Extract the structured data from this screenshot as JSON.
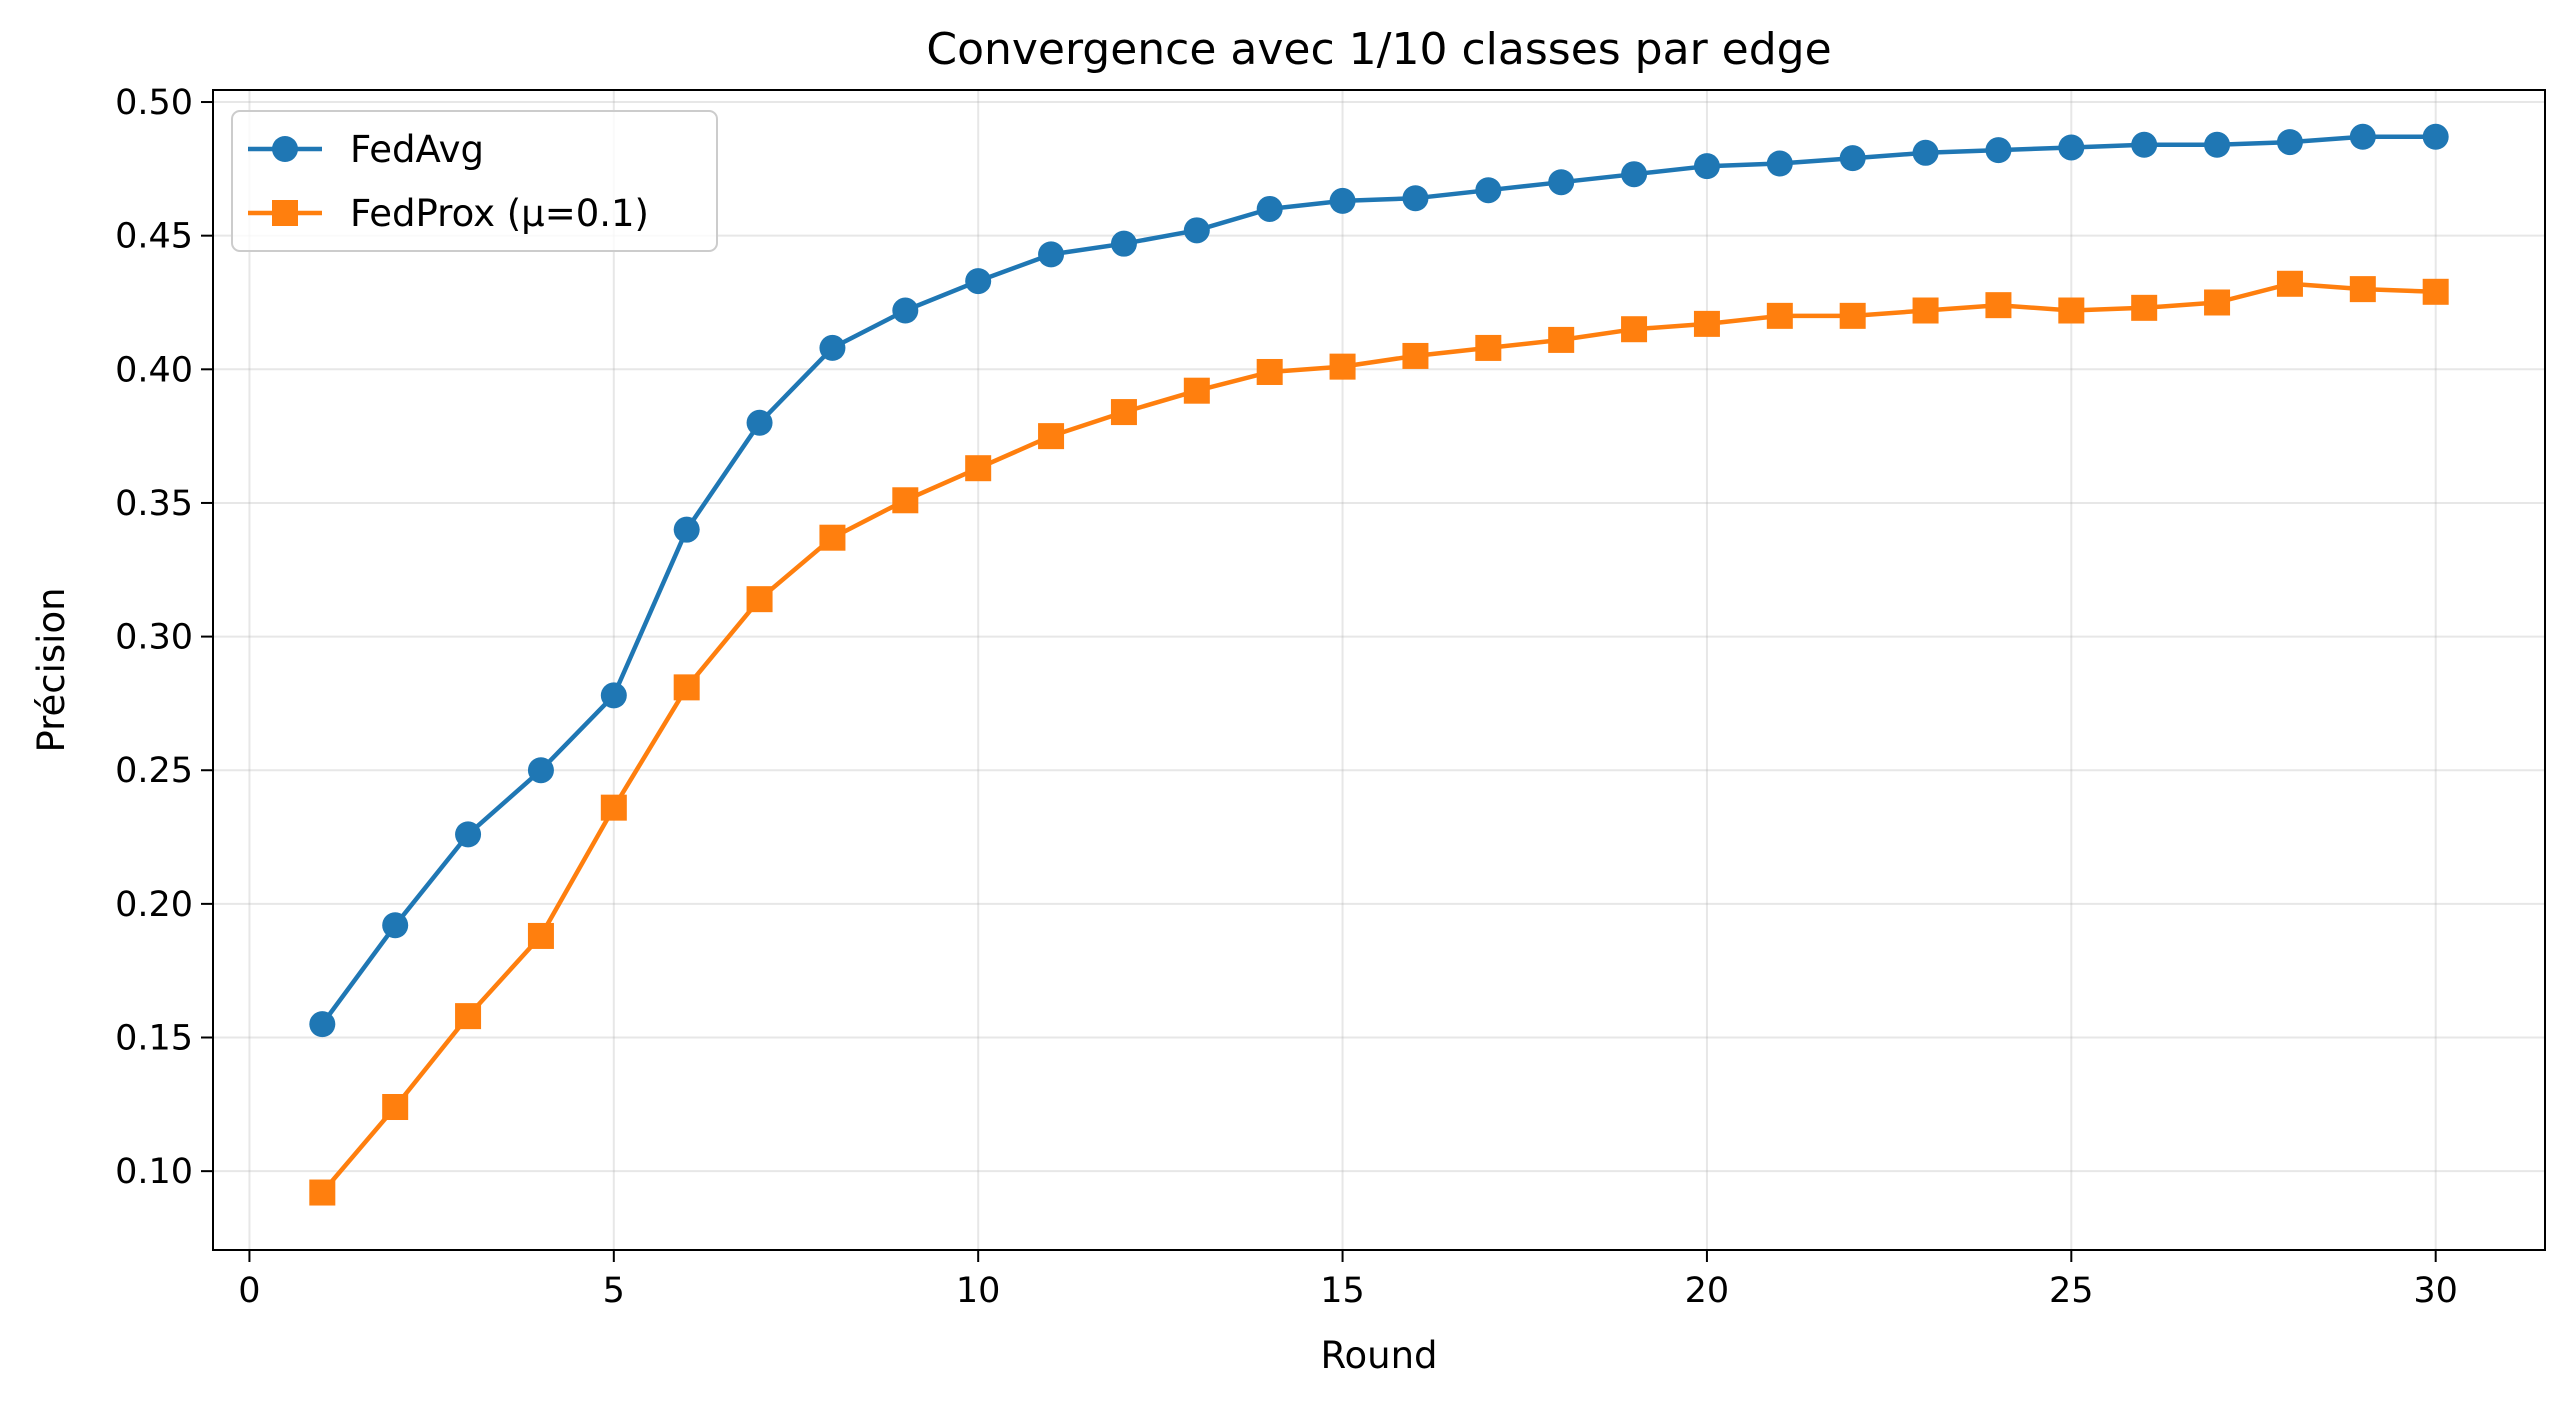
{
  "chart_data": {
    "type": "line",
    "title": "Convergence avec 1/10 classes par edge",
    "xlabel": "Round",
    "ylabel": "Précision",
    "xlim": [
      -0.5,
      31.5
    ],
    "ylim": [
      0.0705,
      0.5045
    ],
    "xticks": [
      0,
      5,
      10,
      15,
      20,
      25,
      30
    ],
    "yticks": [
      0.1,
      0.15,
      0.2,
      0.25,
      0.3,
      0.35,
      0.4,
      0.45,
      0.5
    ],
    "grid": true,
    "legend_position": "top-left",
    "x": [
      1,
      2,
      3,
      4,
      5,
      6,
      7,
      8,
      9,
      10,
      11,
      12,
      13,
      14,
      15,
      16,
      17,
      18,
      19,
      20,
      21,
      22,
      23,
      24,
      25,
      26,
      27,
      28,
      29,
      30
    ],
    "series": [
      {
        "name": "FedAvg",
        "color": "#1f77b4",
        "marker": "circle",
        "values": [
          0.155,
          0.192,
          0.226,
          0.25,
          0.278,
          0.34,
          0.38,
          0.408,
          0.422,
          0.433,
          0.443,
          0.447,
          0.452,
          0.46,
          0.463,
          0.464,
          0.467,
          0.47,
          0.473,
          0.476,
          0.477,
          0.479,
          0.481,
          0.482,
          0.483,
          0.484,
          0.484,
          0.485,
          0.487,
          0.487
        ]
      },
      {
        "name": "FedProx (μ=0.1)",
        "color": "#ff7f0e",
        "marker": "square",
        "values": [
          0.092,
          0.124,
          0.158,
          0.188,
          0.236,
          0.281,
          0.314,
          0.337,
          0.351,
          0.363,
          0.375,
          0.384,
          0.392,
          0.399,
          0.401,
          0.405,
          0.408,
          0.411,
          0.415,
          0.417,
          0.42,
          0.42,
          0.422,
          0.424,
          0.422,
          0.423,
          0.425,
          0.432,
          0.43,
          0.429
        ]
      }
    ]
  }
}
